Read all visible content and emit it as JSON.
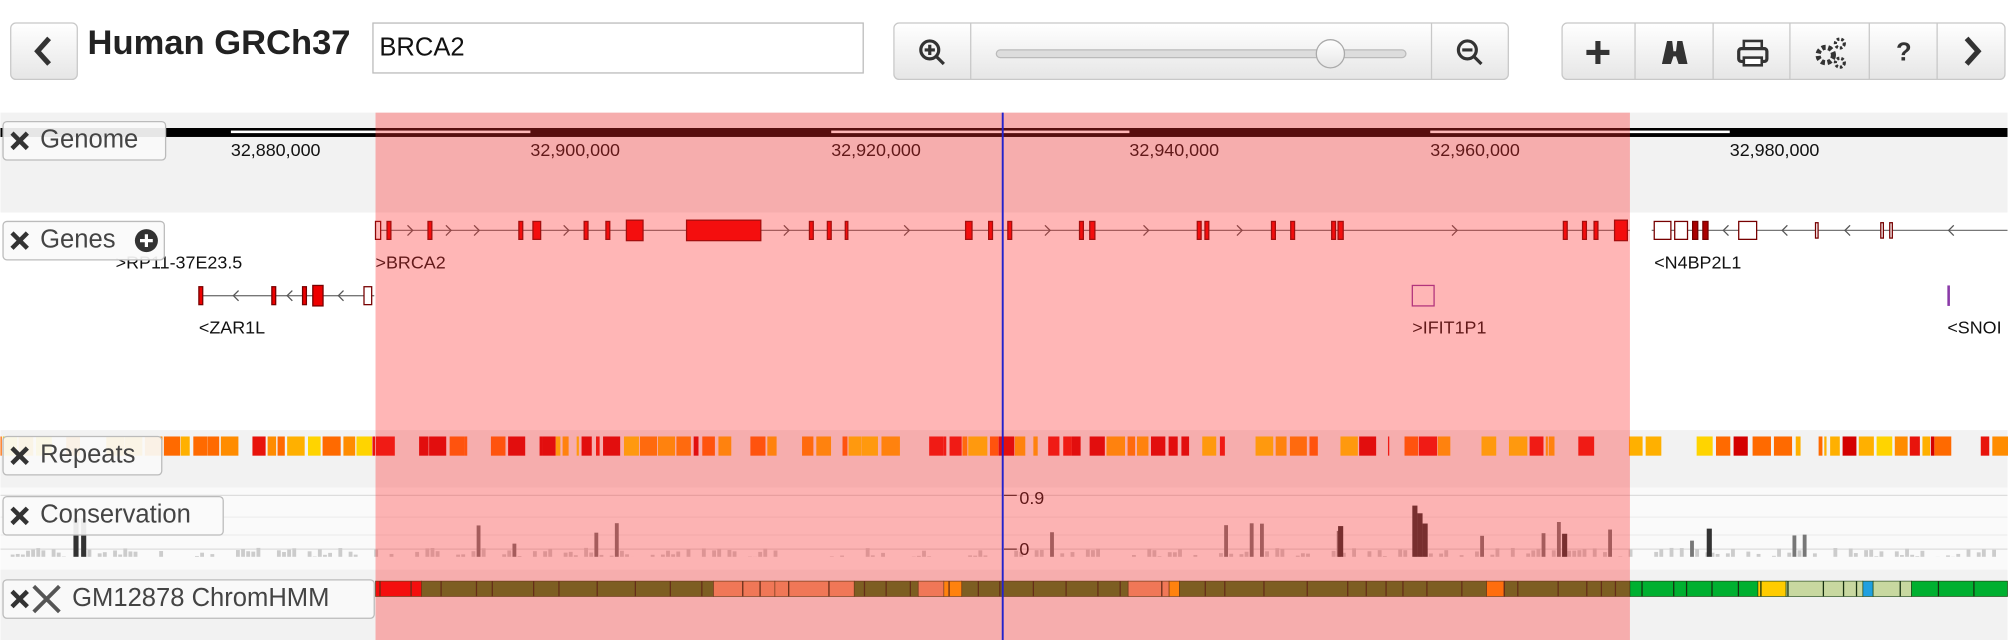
{
  "header": {
    "title": "Human GRCh37",
    "search": "BRCA2",
    "help_icon": "?"
  },
  "ruler": {
    "ticks": [
      "32,880,000",
      "32,900,000",
      "32,920,000",
      "32,940,000",
      "32,960,000",
      "32,980,000"
    ]
  },
  "tracks": [
    {
      "name": "Genome"
    },
    {
      "name": "Genes"
    },
    {
      "name": "Repeats"
    },
    {
      "name": "Conservation"
    },
    {
      "name": "GM12878 ChromHMM"
    }
  ],
  "genes": [
    ">RP11-37E23.5",
    ">BRCA2",
    "<ZAR1L",
    ">IFIT1P1",
    "<N4BP2L1",
    "<SNOI"
  ],
  "conservation": {
    "scale": [
      "0.9",
      "0"
    ]
  }
}
